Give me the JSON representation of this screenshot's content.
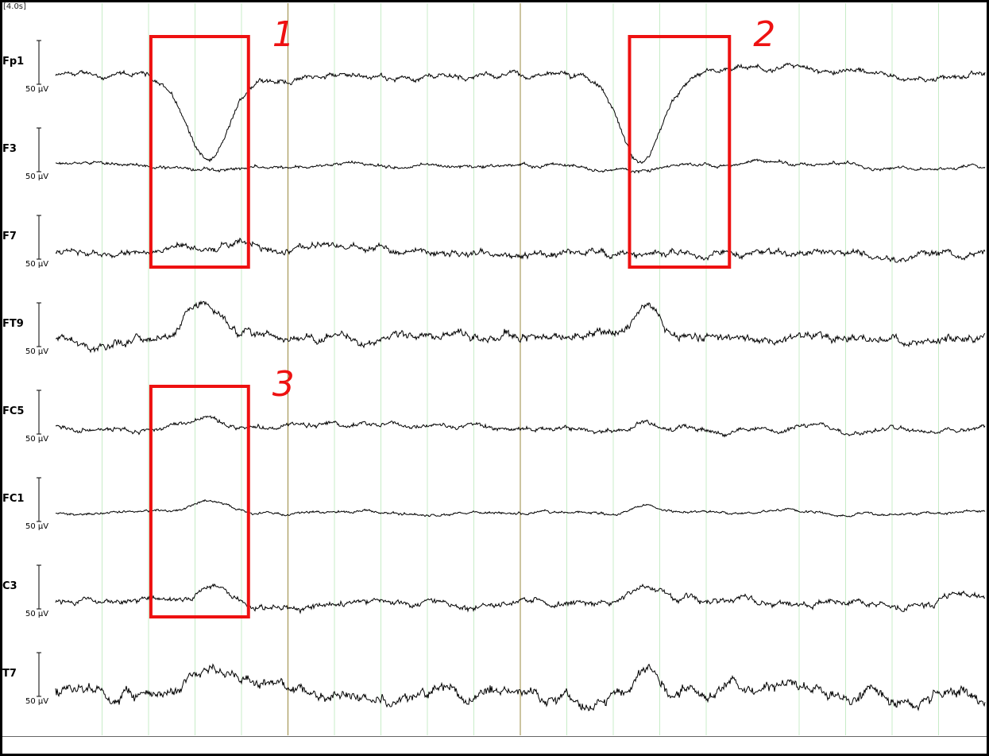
{
  "time_window_label": "[4.0s]",
  "colors": {
    "trace": "#000000",
    "minor_grid": "#c8ecc8",
    "major_grid": "#9a8a40",
    "annotation": "#ee1111"
  },
  "chart_data": {
    "type": "line",
    "title": "",
    "xlabel": "",
    "ylabel": "",
    "duration_s": 4.0,
    "amplitude_scale": "50 µV",
    "channels": [
      {
        "name": "Fp1",
        "scale": "50 µV",
        "events": [
          {
            "t": 0.66,
            "amp": -4.1,
            "w": 0.2
          },
          {
            "t": 2.52,
            "amp": -4.1,
            "w": 0.2
          }
        ],
        "noise": 0.35
      },
      {
        "name": "F3",
        "scale": "50 µV",
        "events": [
          {
            "t": 0.64,
            "amp": -0.25,
            "w": 0.25
          },
          {
            "t": 2.52,
            "amp": -0.3,
            "w": 0.25
          }
        ],
        "noise": 0.22
      },
      {
        "name": "F7",
        "scale": "50 µV",
        "events": [],
        "noise": 0.45
      },
      {
        "name": "FT9",
        "scale": "50 µV",
        "events": [
          {
            "t": 0.63,
            "amp": 1.6,
            "w": 0.18
          },
          {
            "t": 2.55,
            "amp": 1.3,
            "w": 0.12
          }
        ],
        "noise": 0.55
      },
      {
        "name": "FC5",
        "scale": "50 µV",
        "events": [
          {
            "t": 0.65,
            "amp": 0.55,
            "w": 0.18
          },
          {
            "t": 2.55,
            "amp": 0.45,
            "w": 0.1
          }
        ],
        "noise": 0.32
      },
      {
        "name": "FC1",
        "scale": "50 µV",
        "events": [
          {
            "t": 0.66,
            "amp": 0.5,
            "w": 0.14
          },
          {
            "t": 2.53,
            "amp": 0.35,
            "w": 0.12
          }
        ],
        "noise": 0.18
      },
      {
        "name": "C3",
        "scale": "50 µV",
        "events": [
          {
            "t": 0.68,
            "amp": 0.9,
            "w": 0.12
          },
          {
            "t": 2.54,
            "amp": 0.8,
            "w": 0.12
          }
        ],
        "noise": 0.4
      },
      {
        "name": "T7",
        "scale": "50 µV",
        "events": [
          {
            "t": 0.65,
            "amp": 1.3,
            "w": 0.15
          },
          {
            "t": 2.55,
            "amp": 1.0,
            "w": 0.1
          }
        ],
        "noise": 0.75
      }
    ],
    "minor_gridlines_s": [
      0.2,
      0.4,
      0.6,
      0.8,
      1.2,
      1.4,
      1.6,
      1.8,
      2.2,
      2.4,
      2.6,
      2.8,
      3.2,
      3.4,
      3.6,
      3.8
    ],
    "major_gridlines_s": [
      1.0,
      2.0
    ],
    "annotations": [
      {
        "label": "1",
        "t_start": 0.41,
        "t_end": 0.83,
        "channel_from": "Fp1",
        "channel_to": "F7"
      },
      {
        "label": "2",
        "t_start": 2.47,
        "t_end": 2.9,
        "channel_from": "Fp1",
        "channel_to": "F7"
      },
      {
        "label": "3",
        "t_start": 0.41,
        "t_end": 0.83,
        "channel_from": "FC5",
        "channel_to": "C3"
      }
    ]
  }
}
